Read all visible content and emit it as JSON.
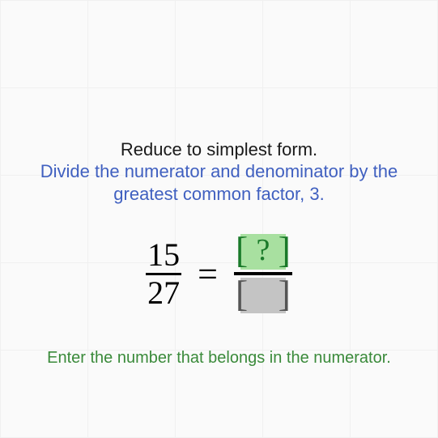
{
  "title": "Reduce to simplest form.",
  "hint_line1": "Divide the numerator and denominator by the",
  "hint_line2": "greatest common factor, 3.",
  "fraction": {
    "numerator": "15",
    "denominator": "27"
  },
  "equals": "=",
  "answer_box": {
    "numerator_placeholder": "?",
    "numerator_bg": "#a8e0a0",
    "numerator_bracket_color": "#1a7a2a",
    "denominator_bg": "#c4c4c4",
    "denominator_bracket_color": "#555"
  },
  "prompt": "Enter the number that belongs in the numerator.",
  "colors": {
    "title": "#1a1a1a",
    "hint": "#4060c0",
    "prompt": "#3a8a3a",
    "background": "#fafafa",
    "grid": "#f0f0f0"
  },
  "typography": {
    "title_fontsize": 22,
    "hint_fontsize": 22,
    "prompt_fontsize": 20,
    "fraction_fontsize": 40,
    "equals_fontsize": 44,
    "qmark_fontsize": 38
  }
}
